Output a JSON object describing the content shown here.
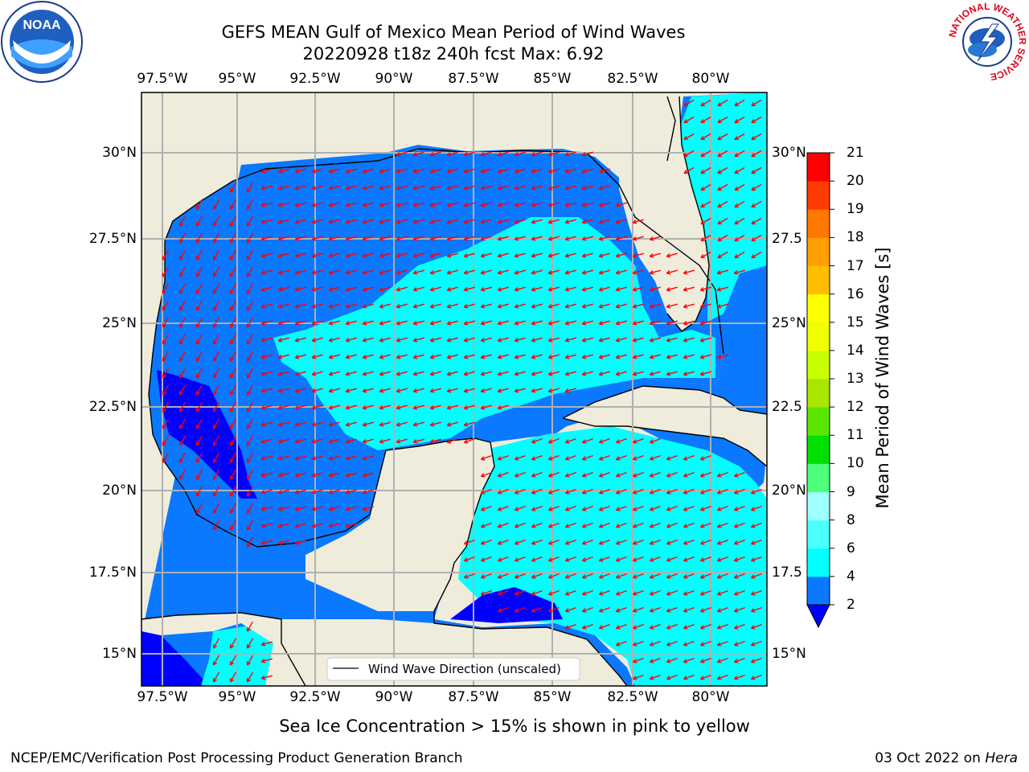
{
  "header": {
    "title_line1": "GEFS MEAN Gulf of Mexico Mean Period of Wind Waves",
    "title_line2": "20220928 t18z 240h fcst   Max: 6.92"
  },
  "map": {
    "lon_labels": [
      "97.5°W",
      "95°W",
      "92.5°W",
      "90°W",
      "87.5°W",
      "85°W",
      "82.5°W",
      "80°W"
    ],
    "lat_labels_left": [
      "30°N",
      "27.5°N",
      "25°N",
      "22.5°N",
      "20°N",
      "17.5°N",
      "15°N"
    ],
    "lat_labels_right": [
      "30°N",
      "27.5",
      "25°N",
      "22.5",
      "20°N",
      "17.5",
      "15°N"
    ],
    "land_color": "#efecdc",
    "arrow_color": "#ff0000",
    "legend_label": "Wind Wave Direction (unscaled)"
  },
  "colorbar": {
    "title": "Mean Period of Wind Waves [s]",
    "ticks": [
      "2",
      "4",
      "6",
      "8",
      "9",
      "10",
      "11",
      "12",
      "13",
      "14",
      "15",
      "16",
      "17",
      "18",
      "19",
      "20",
      "21"
    ],
    "colors": [
      "#0000ff",
      "#0a78ff",
      "#00ffff",
      "#4bffff",
      "#a0ffff",
      "#4dff7b",
      "#00e000",
      "#5ae600",
      "#a8e600",
      "#c8ff00",
      "#f0ff00",
      "#ffff00",
      "#ffbe00",
      "#ffa000",
      "#ff7800",
      "#ff3c00",
      "#ff0000"
    ]
  },
  "notes": {
    "sea_ice": "Sea Ice Concentration > 15% is shown in pink to yellow"
  },
  "footer": {
    "left": "NCEP/EMC/Verification Post Processing Product Generation Branch",
    "date": "03 Oct 2022 on ",
    "host": "Hera"
  },
  "logos": {
    "noaa_text": "NOAA",
    "nws_ring_text": "NATIONAL WEATHER SERVICE"
  }
}
